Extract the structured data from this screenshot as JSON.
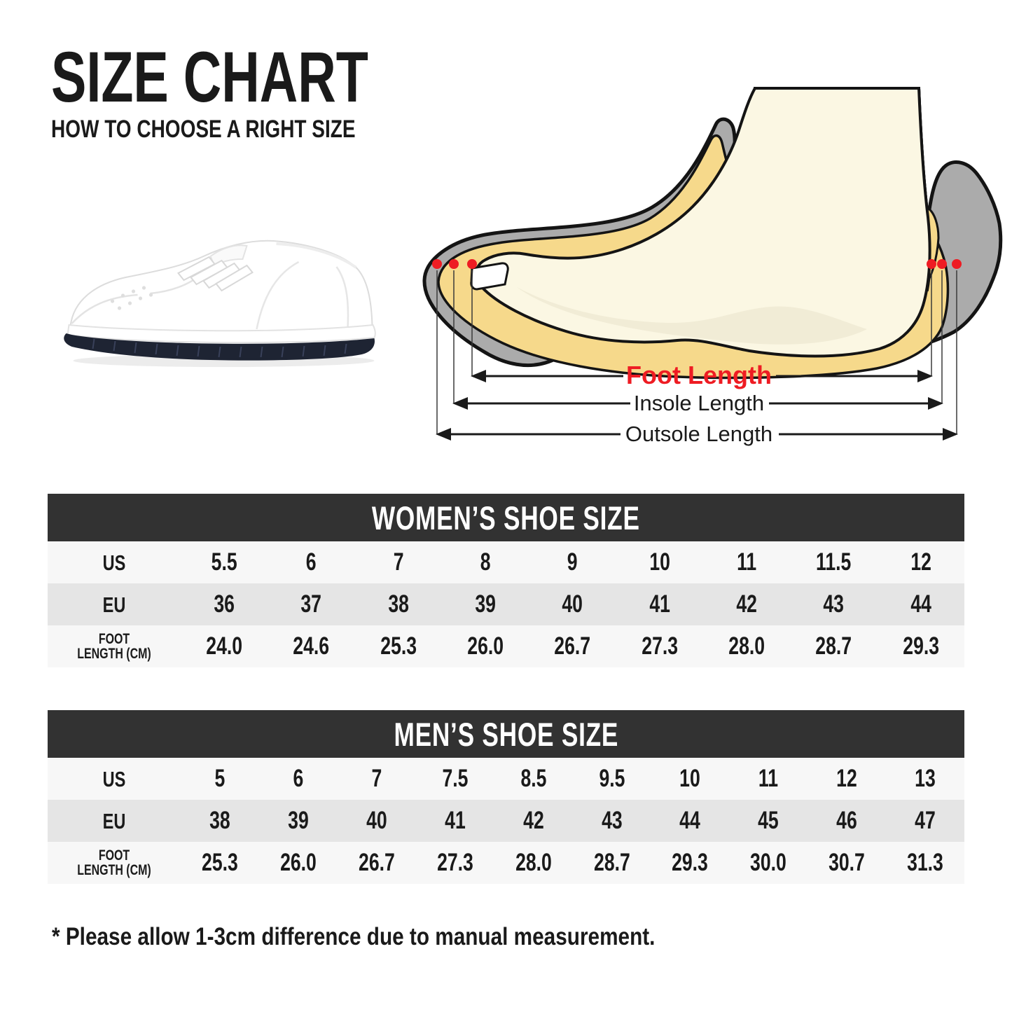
{
  "header": {
    "title": "SIZE CHART",
    "subtitle": "HOW TO CHOOSE A RIGHT SIZE"
  },
  "diagram": {
    "foot_length_label": "Foot Length",
    "insole_length_label": "Insole Length",
    "outsole_length_label": "Outsole Length"
  },
  "illustrations": {
    "sneaker": "white low-top sneaker with navy outsole, side view facing left",
    "foot_diagram": "cutaway side view of foot inside shoe with measurement markers"
  },
  "tables": [
    {
      "title": "WOMEN’S SHOE SIZE",
      "rows": [
        {
          "label": "US",
          "values": [
            "5.5",
            "6",
            "7",
            "8",
            "9",
            "10",
            "11",
            "11.5",
            "12"
          ]
        },
        {
          "label": "EU",
          "values": [
            "36",
            "37",
            "38",
            "39",
            "40",
            "41",
            "42",
            "43",
            "44"
          ]
        },
        {
          "label": "FOOT LENGTH (CM)",
          "label_lines": [
            "FOOT",
            "LENGTH (CM)"
          ],
          "values": [
            "24.0",
            "24.6",
            "25.3",
            "26.0",
            "26.7",
            "27.3",
            "28.0",
            "28.7",
            "29.3"
          ]
        }
      ]
    },
    {
      "title": "MEN’S SHOE SIZE",
      "rows": [
        {
          "label": "US",
          "values": [
            "5",
            "6",
            "7",
            "7.5",
            "8.5",
            "9.5",
            "10",
            "11",
            "12",
            "13"
          ]
        },
        {
          "label": "EU",
          "values": [
            "38",
            "39",
            "40",
            "41",
            "42",
            "43",
            "44",
            "45",
            "46",
            "47"
          ]
        },
        {
          "label": "FOOT LENGTH (CM)",
          "label_lines": [
            "FOOT",
            "LENGTH (CM)"
          ],
          "values": [
            "25.3",
            "26.0",
            "26.7",
            "27.3",
            "28.0",
            "28.7",
            "29.3",
            "30.0",
            "30.7",
            "31.3"
          ]
        }
      ]
    }
  ],
  "footnote": "* Please allow 1-3cm difference due to manual measurement.",
  "colors": {
    "accent_red": "#ee1c23",
    "table_header_bar": "#323232",
    "row_light": "#f7f7f7",
    "row_gray": "#e5e5e5",
    "shoe_gray": "#ababab",
    "insole_yellow": "#f6d98b",
    "foot_cream": "#fbf7e3",
    "outline_black": "#141414",
    "sneaker_sole_navy": "#1e2433"
  }
}
